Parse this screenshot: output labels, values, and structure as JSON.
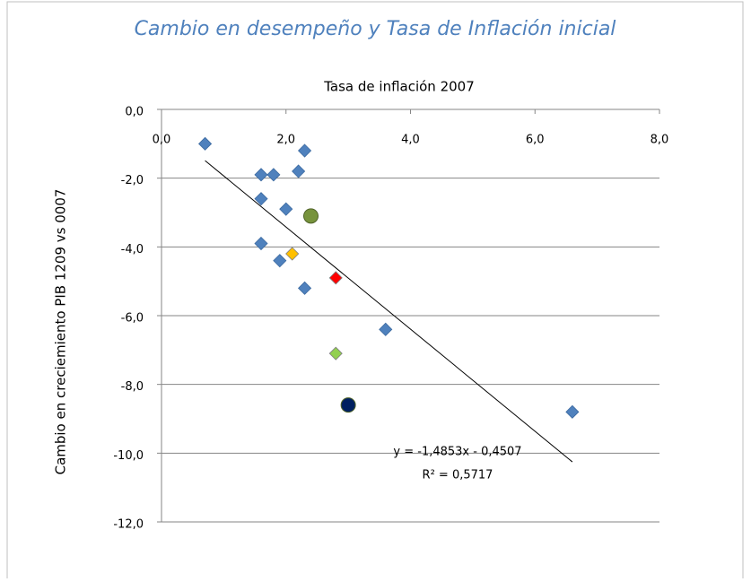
{
  "chart_data": {
    "type": "scatter",
    "title": "Cambio en desempeño y Tasa de Inflación inicial",
    "x_label": "Tasa de inflación 2007",
    "y_label": "Cambio en creciemiento PIB 1209 vs 0007",
    "x": [
      0.7,
      1.6,
      1.8,
      2.3,
      2.2,
      1.6,
      2.0,
      2.4,
      1.6,
      1.9,
      2.1,
      2.8,
      2.3,
      3.6,
      2.8,
      3.0,
      6.6
    ],
    "values": [
      -1.0,
      -1.9,
      -1.9,
      -1.2,
      -1.8,
      -2.6,
      -2.9,
      -3.1,
      -3.9,
      -4.4,
      -4.2,
      -4.9,
      -5.2,
      -6.4,
      -7.1,
      -8.6,
      -8.8
    ],
    "colors": [
      "#4f81bd",
      "#4f81bd",
      "#4f81bd",
      "#4f81bd",
      "#4f81bd",
      "#4f81bd",
      "#4f81bd",
      "#77933c",
      "#4f81bd",
      "#4f81bd",
      "#ffc000",
      "#ff0000",
      "#4f81bd",
      "#4f81bd",
      "#92d050",
      "#002060",
      "#4f81bd"
    ],
    "markers": [
      "diamond",
      "diamond",
      "diamond",
      "diamond",
      "diamond",
      "diamond",
      "diamond",
      "circle",
      "diamond",
      "diamond",
      "diamond",
      "diamond",
      "diamond",
      "diamond",
      "diamond",
      "circle",
      "diamond"
    ],
    "xlim": [
      0,
      8
    ],
    "ylim": [
      -12,
      0
    ],
    "xticks": [
      {
        "value": 0,
        "label": "0,0"
      },
      {
        "value": 2,
        "label": "2,0"
      },
      {
        "value": 4,
        "label": "4,0"
      },
      {
        "value": 6,
        "label": "6,0"
      },
      {
        "value": 8,
        "label": "8,0"
      }
    ],
    "yticks": [
      {
        "value": 0,
        "label": "0,0"
      },
      {
        "value": -2,
        "label": "-2,0"
      },
      {
        "value": -4,
        "label": "-4,0"
      },
      {
        "value": -6,
        "label": "-6,0"
      },
      {
        "value": -8,
        "label": "-8,0"
      },
      {
        "value": -10,
        "label": "-10,0"
      },
      {
        "value": -12,
        "label": "-12,0"
      }
    ],
    "grid": true,
    "trendline": {
      "slope": -1.4853,
      "intercept": -0.4507,
      "x": [
        0.7,
        6.6
      ],
      "equation": "y = -1,4853x - 0,4507",
      "r_squared": "R² = 0,5717"
    }
  }
}
